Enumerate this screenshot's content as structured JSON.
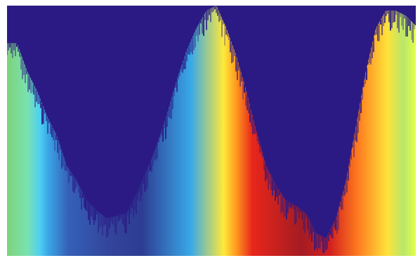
{
  "image": {
    "colors": {
      "background": "#ffffff",
      "overlay": "#2b1a84",
      "colormap": [
        "#7ed37a",
        "#79e1b0",
        "#4fd0f2",
        "#3aa7e6",
        "#3560b8",
        "#33449b",
        "#2e3c93",
        "#39a9e8",
        "#ffe93a",
        "#ff9b1f",
        "#e8261b",
        "#a41c22",
        "#d31f1f",
        "#ff7d1f",
        "#ffe239",
        "#b9e86a",
        "#e3ff4a"
      ]
    },
    "boundary": {
      "values": [
        0.85,
        0.85,
        0.74,
        0.66,
        0.56,
        0.48,
        0.36,
        0.3,
        0.22,
        0.18,
        0.15,
        0.16,
        0.17,
        0.25,
        0.34,
        0.44,
        0.56,
        0.7,
        0.82,
        0.91,
        0.98,
        1.0,
        0.91,
        0.8,
        0.66,
        0.5,
        0.36,
        0.28,
        0.22,
        0.2,
        0.17,
        0.09,
        0.07,
        0.15,
        0.3,
        0.52,
        0.74,
        0.91,
        0.98,
        0.98,
        0.96,
        0.92
      ]
    }
  }
}
